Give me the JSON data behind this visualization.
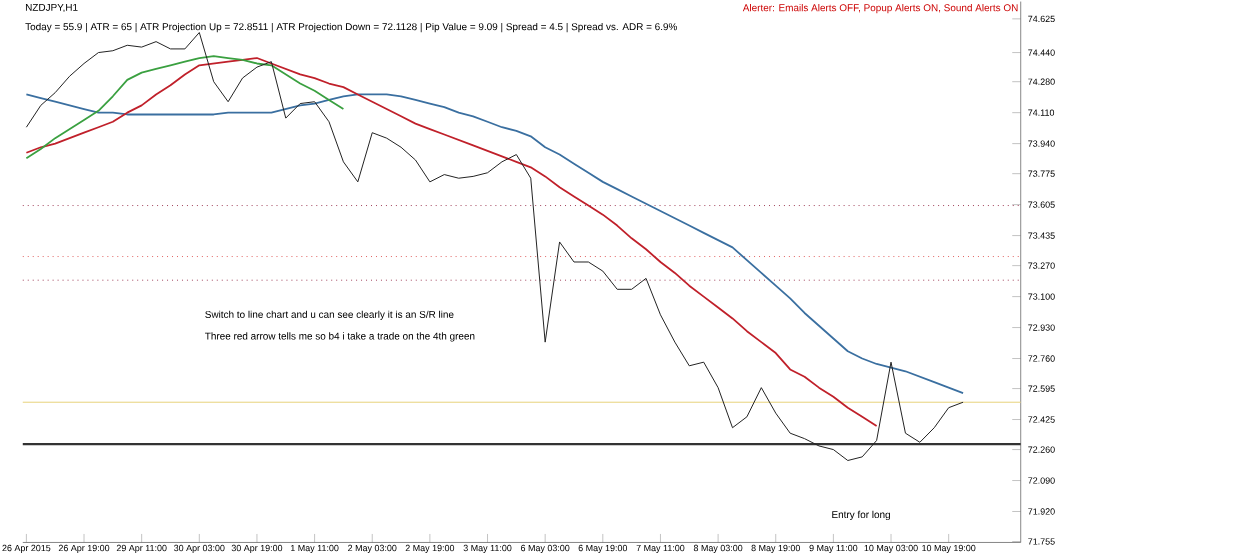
{
  "chart_data": {
    "type": "line",
    "title": "NZDJPY,H1",
    "subtitle": "Today = 55.9  |  ATR = 65  |  ATR Projection Up = 72.8511  |  ATR Projection Down = 72.1128  |  Pip Value = 9.09  |  Spread = 4.5  |  Spread vs. ADR = 6.9%",
    "annotations": [
      "Alerter: Emails Alerts OFF, Popup Alerts ON, Sound Alerts ON",
      "Switch to line chart and u can see clearly it is an S/R line",
      "Three red arrow tells me so b4 i take a trade on the 4th green",
      "Entry for long"
    ],
    "categories": [
      "26 Apr 2015",
      null,
      null,
      null,
      "26 Apr 19:00",
      null,
      null,
      null,
      "29 Apr 11:00",
      null,
      null,
      null,
      "30 Apr 03:00",
      null,
      null,
      null,
      "30 Apr 19:00",
      null,
      null,
      null,
      "1 May 11:00",
      null,
      null,
      null,
      "2 May 03:00",
      null,
      null,
      null,
      "2 May 19:00",
      null,
      null,
      null,
      "3 May 11:00",
      null,
      null,
      null,
      "6 May 03:00",
      null,
      null,
      null,
      "6 May 19:00",
      null,
      null,
      null,
      "7 May 11:00",
      null,
      null,
      null,
      "8 May 03:00",
      null,
      null,
      null,
      "8 May 19:00",
      null,
      null,
      null,
      "9 May 11:00",
      null,
      null,
      null,
      "10 May 03:00",
      null,
      null,
      null,
      "10 May 19:00",
      null,
      null,
      null,
      null,
      null
    ],
    "ylim": [
      71.75,
      74.72
    ],
    "yticks": [
      74.625,
      {
        "value": 74.44,
        "label": "74.440"
      },
      {
        "value": 74.28,
        "label": "74.280"
      },
      {
        "value": 74.11,
        "label": "74.110"
      },
      {
        "value": 73.94,
        "label": "73.940"
      },
      73.775,
      73.605,
      73.435,
      {
        "value": 73.27,
        "label": "73.270"
      },
      {
        "value": 73.1,
        "label": "73.100"
      },
      {
        "value": 72.93,
        "label": "72.930"
      },
      {
        "value": 72.76,
        "label": "72.760"
      },
      72.595,
      72.425,
      {
        "value": 72.26,
        "label": "72.260"
      },
      {
        "value": 72.09,
        "label": "72.090"
      },
      {
        "value": 71.92,
        "label": "71.920"
      },
      71.755
    ],
    "marker": "none",
    "ref_lines": [
      {
        "axis": "y",
        "value": 72.29,
        "color": "#333333",
        "line_style": "solid"
      },
      {
        "axis": "y",
        "value": 72.52,
        "color": "#e8d27a",
        "line_style": "solid"
      },
      {
        "axis": "y",
        "value": 73.6,
        "color": "#a0405a",
        "line_style": "dotted"
      },
      {
        "axis": "y",
        "value": 73.32,
        "color": "#e06060",
        "line_style": "dotted"
      },
      {
        "axis": "y",
        "value": 73.19,
        "color": "#a0405a",
        "line_style": "dotted"
      }
    ],
    "series": [
      {
        "color": "#3a6fa0",
        "values": [
          74.21,
          74.19,
          74.17,
          74.15,
          74.13,
          74.11,
          74.11,
          74.1,
          74.1,
          74.1,
          74.1,
          74.1,
          74.1,
          74.1,
          74.11,
          74.11,
          74.11,
          74.11,
          74.13,
          74.15,
          74.16,
          74.18,
          74.2,
          74.21,
          74.21,
          74.21,
          74.2,
          74.18,
          74.16,
          74.14,
          74.11,
          74.09,
          74.06,
          74.03,
          74.01,
          73.98,
          73.92,
          73.88,
          73.83,
          73.78,
          73.73,
          73.69,
          73.65,
          73.61,
          73.57,
          73.53,
          73.49,
          73.45,
          73.41,
          73.37,
          73.3,
          73.23,
          73.16,
          73.09,
          73.01,
          72.94,
          72.87,
          72.8,
          72.76,
          72.73,
          72.71,
          72.69,
          72.66,
          72.63,
          72.6,
          72.57,
          null,
          null,
          null,
          null
        ]
      },
      {
        "color": "#c0202a",
        "values": [
          73.89,
          73.92,
          73.94,
          73.97,
          74.0,
          74.03,
          74.06,
          74.11,
          74.15,
          74.21,
          74.26,
          74.32,
          74.37,
          74.38,
          74.39,
          74.4,
          74.41,
          74.38,
          74.35,
          74.32,
          74.3,
          74.27,
          74.25,
          74.21,
          74.17,
          74.13,
          74.09,
          74.05,
          74.02,
          73.99,
          73.96,
          73.93,
          73.9,
          73.87,
          73.84,
          73.81,
          73.76,
          73.7,
          73.65,
          73.6,
          73.55,
          73.49,
          73.42,
          73.36,
          73.29,
          73.23,
          73.16,
          73.1,
          73.04,
          72.98,
          72.91,
          72.85,
          72.79,
          72.7,
          72.66,
          72.6,
          72.55,
          72.49,
          72.44,
          72.39,
          null,
          null,
          null,
          null,
          null,
          null,
          null,
          null,
          null,
          null
        ]
      },
      {
        "color": "#3aa040",
        "values": [
          73.86,
          73.91,
          73.97,
          74.02,
          74.07,
          74.12,
          74.2,
          74.29,
          74.33,
          74.35,
          74.37,
          74.39,
          74.41,
          74.42,
          74.41,
          74.4,
          74.38,
          74.37,
          74.32,
          74.27,
          74.23,
          74.18,
          74.13,
          null,
          null,
          null,
          null,
          null,
          null,
          null,
          null,
          null,
          null,
          null,
          null,
          null,
          null,
          null,
          null,
          null,
          null,
          null,
          null,
          null,
          null,
          null,
          null,
          null,
          null,
          null,
          null,
          null,
          null,
          null,
          null,
          null,
          null,
          null,
          null,
          null,
          null,
          null,
          null,
          null,
          null,
          null,
          null,
          null,
          null,
          null
        ]
      },
      {
        "color": "#222222",
        "values": [
          74.03,
          74.15,
          74.22,
          74.31,
          74.38,
          74.44,
          74.45,
          74.48,
          74.47,
          74.5,
          74.46,
          74.46,
          74.55,
          74.28,
          74.17,
          74.3,
          74.36,
          74.39,
          74.08,
          74.16,
          74.17,
          74.06,
          73.84,
          73.73,
          74.0,
          73.97,
          73.92,
          73.85,
          73.73,
          73.77,
          73.75,
          73.76,
          73.78,
          73.84,
          73.88,
          73.75,
          72.85,
          73.4,
          73.29,
          73.29,
          73.24,
          73.14,
          73.14,
          73.2,
          73.0,
          72.85,
          72.72,
          72.74,
          72.6,
          72.38,
          72.44,
          72.6,
          72.46,
          72.35,
          72.32,
          72.28,
          72.26,
          72.2,
          72.22,
          72.31,
          72.74,
          72.35,
          72.3,
          72.38,
          72.49,
          72.52,
          null,
          null,
          null,
          null
        ]
      }
    ]
  }
}
